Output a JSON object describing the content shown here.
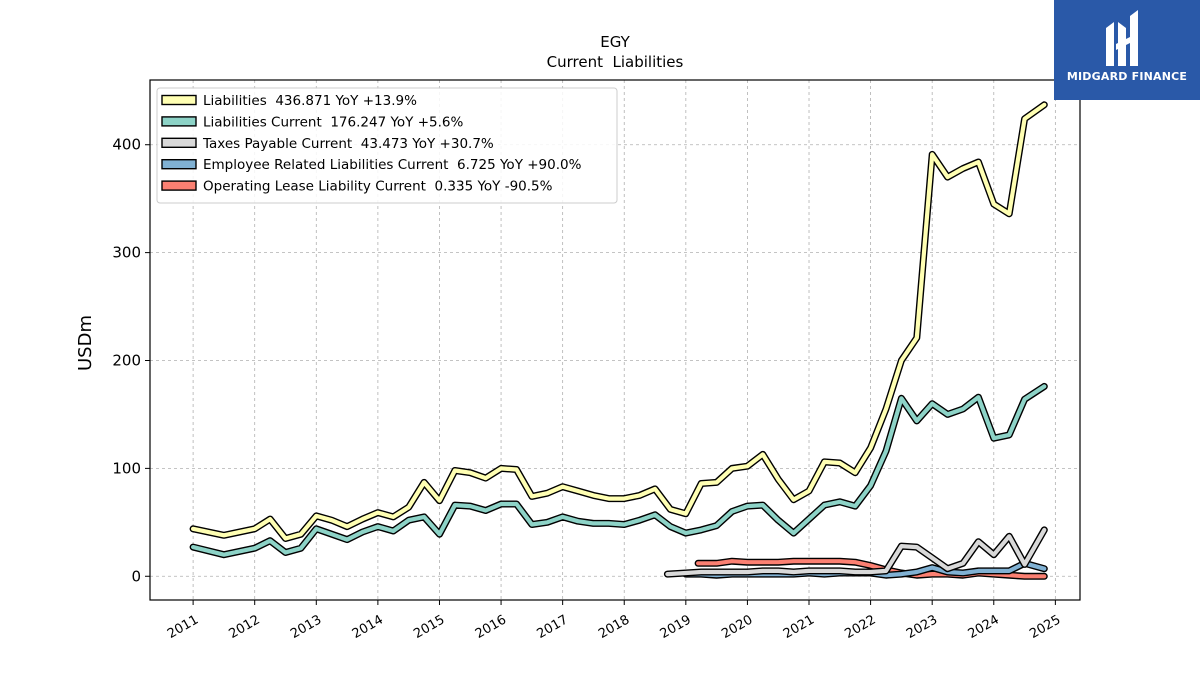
{
  "chart_data": {
    "type": "line",
    "title": "EGY",
    "subtitle": "Current  Liabilities",
    "ylabel": "USDm",
    "xlabel": "",
    "xlim": [
      2010.3,
      2025.4
    ],
    "ylim": [
      -22,
      460
    ],
    "yticks": [
      0,
      100,
      200,
      300,
      400
    ],
    "xticks": [
      "2011",
      "2012",
      "2013",
      "2014",
      "2015",
      "2016",
      "2017",
      "2018",
      "2019",
      "2020",
      "2021",
      "2022",
      "2023",
      "2024",
      "2025"
    ],
    "grid": true,
    "legend_position": "top-left",
    "series": [
      {
        "name": "Liabilities  436.871 YoY +13.9%",
        "color": "#ffffb3",
        "x": [
          2011.0,
          2011.5,
          2012.0,
          2012.25,
          2012.5,
          2012.75,
          2013.0,
          2013.25,
          2013.5,
          2013.75,
          2014.0,
          2014.25,
          2014.5,
          2014.75,
          2015.0,
          2015.25,
          2015.5,
          2015.75,
          2016.0,
          2016.25,
          2016.5,
          2016.75,
          2017.0,
          2017.25,
          2017.5,
          2017.75,
          2018.0,
          2018.25,
          2018.5,
          2018.75,
          2019.0,
          2019.25,
          2019.5,
          2019.75,
          2020.0,
          2020.25,
          2020.5,
          2020.75,
          2021.0,
          2021.25,
          2021.5,
          2021.75,
          2022.0,
          2022.25,
          2022.5,
          2022.75,
          2023.0,
          2023.25,
          2023.5,
          2023.75,
          2024.0,
          2024.25,
          2024.5,
          2024.82
        ],
        "values": [
          44,
          38,
          44,
          53,
          35,
          39,
          56,
          52,
          46,
          53,
          59,
          55,
          64,
          87,
          70,
          98,
          96,
          91,
          100,
          99,
          74,
          77,
          83,
          79,
          75,
          72,
          72,
          75,
          81,
          62,
          58,
          86,
          87,
          100,
          102,
          113,
          90,
          71,
          79,
          106,
          105,
          96,
          119,
          155,
          200,
          221,
          391,
          370,
          378,
          384,
          345,
          336,
          424,
          437
        ]
      },
      {
        "name": "Liabilities Current  176.247 YoY +5.6%",
        "color": "#8dd3c7",
        "x": [
          2011.0,
          2011.5,
          2012.0,
          2012.25,
          2012.5,
          2012.75,
          2013.0,
          2013.25,
          2013.5,
          2013.75,
          2014.0,
          2014.25,
          2014.5,
          2014.75,
          2015.0,
          2015.25,
          2015.5,
          2015.75,
          2016.0,
          2016.25,
          2016.5,
          2016.75,
          2017.0,
          2017.25,
          2017.5,
          2017.75,
          2018.0,
          2018.25,
          2018.5,
          2018.75,
          2019.0,
          2019.25,
          2019.5,
          2019.75,
          2020.0,
          2020.25,
          2020.5,
          2020.75,
          2021.0,
          2021.25,
          2021.5,
          2021.75,
          2022.0,
          2022.25,
          2022.5,
          2022.75,
          2023.0,
          2023.25,
          2023.5,
          2023.75,
          2024.0,
          2024.25,
          2024.5,
          2024.82
        ],
        "values": [
          27,
          20,
          26,
          33,
          22,
          26,
          44,
          39,
          34,
          41,
          46,
          42,
          52,
          55,
          39,
          66,
          65,
          61,
          67,
          67,
          48,
          50,
          55,
          51,
          49,
          49,
          48,
          52,
          57,
          46,
          40,
          43,
          47,
          60,
          65,
          66,
          52,
          40,
          53,
          66,
          69,
          65,
          84,
          116,
          165,
          144,
          160,
          150,
          155,
          166,
          128,
          131,
          164,
          176
        ]
      },
      {
        "name": "Taxes Payable Current  43.473 YoY +30.7%",
        "color": "#d9d9d9",
        "x": [
          2018.7,
          2019.0,
          2019.25,
          2019.5,
          2019.75,
          2020.0,
          2020.25,
          2020.5,
          2020.75,
          2021.0,
          2021.25,
          2021.5,
          2021.75,
          2022.0,
          2022.25,
          2022.5,
          2022.75,
          2023.0,
          2023.25,
          2023.5,
          2023.75,
          2024.0,
          2024.25,
          2024.5,
          2024.82
        ],
        "values": [
          2,
          3,
          4,
          4,
          4,
          4,
          5,
          5,
          4,
          5,
          5,
          5,
          4,
          4,
          5,
          28,
          27,
          17,
          7,
          12,
          32,
          20,
          37,
          11,
          43
        ]
      },
      {
        "name": "Employee Related Liabilities Current  6.725 YoY +90.0%",
        "color": "#80b1d3",
        "x": [
          2019.0,
          2019.25,
          2019.5,
          2019.75,
          2020.0,
          2020.25,
          2020.5,
          2020.75,
          2021.0,
          2021.25,
          2021.5,
          2021.75,
          2022.0,
          2022.25,
          2022.5,
          2022.75,
          2023.0,
          2023.25,
          2023.5,
          2023.75,
          2024.0,
          2024.25,
          2024.5,
          2024.82
        ],
        "values": [
          2,
          2,
          1,
          2,
          2,
          2,
          2,
          2,
          3,
          2,
          3,
          3,
          3,
          1,
          2,
          4,
          8,
          4,
          3,
          5,
          5,
          5,
          12,
          7
        ]
      },
      {
        "name": "Operating Lease Liability Current  0.335 YoY -90.5%",
        "color": "#fb8072",
        "x": [
          2019.2,
          2019.5,
          2019.75,
          2020.0,
          2020.25,
          2020.5,
          2020.75,
          2021.0,
          2021.25,
          2021.5,
          2021.75,
          2022.0,
          2022.25,
          2022.5,
          2022.75,
          2023.0,
          2023.25,
          2023.5,
          2023.75,
          2024.0,
          2024.25,
          2024.5,
          2024.82
        ],
        "values": [
          12,
          12,
          14,
          13,
          13,
          13,
          14,
          14,
          14,
          14,
          13,
          10,
          6,
          3,
          1,
          2,
          2,
          1,
          3,
          2,
          1,
          0,
          0
        ]
      }
    ]
  },
  "logo": {
    "text": "MIDGARD FINANCE",
    "background": "#2a59a8",
    "icon": "midgard-logo-icon"
  }
}
